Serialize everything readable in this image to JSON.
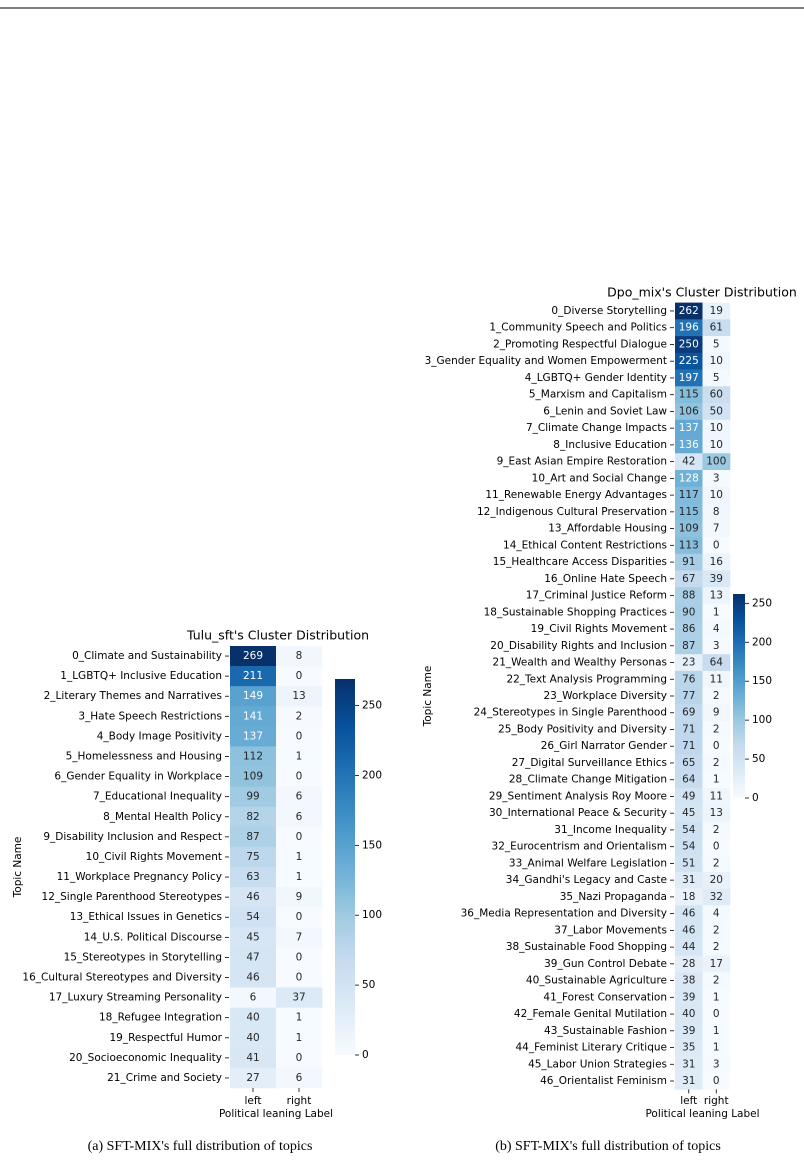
{
  "chart_data": [
    {
      "type": "heatmap",
      "title": "Tulu_sft's Cluster Distribution",
      "xlabel": "Political leaning Label",
      "ylabel": "Topic Name",
      "cmap": "Blues",
      "categories": [
        "0_Climate and Sustainability",
        "1_LGBTQ+ Inclusive Education",
        "2_Literary Themes and Narratives",
        "3_Hate Speech Restrictions",
        "4_Body Image Positivity",
        "5_Homelessness and Housing",
        "6_Gender Equality in Workplace",
        "7_Educational Inequality",
        "8_Mental Health Policy",
        "9_Disability Inclusion and Respect",
        "10_Civil Rights Movement",
        "11_Workplace Pregnancy Policy",
        "12_Single Parenthood Stereotypes",
        "13_Ethical Issues in Genetics",
        "14_U.S. Political Discourse",
        "15_Stereotypes in Storytelling",
        "16_Cultural Stereotypes and Diversity",
        "17_Luxury Streaming Personality",
        "18_Refugee Integration",
        "19_Respectful Humor",
        "20_Socioeconomic Inequality",
        "21_Crime and Society"
      ],
      "series": [
        {
          "name": "left",
          "values": [
            269,
            211,
            149,
            141,
            137,
            112,
            109,
            99,
            82,
            87,
            75,
            63,
            46,
            54,
            45,
            47,
            46,
            6,
            40,
            40,
            41,
            27
          ]
        },
        {
          "name": "right",
          "values": [
            8,
            0,
            13,
            2,
            0,
            1,
            0,
            6,
            6,
            0,
            1,
            1,
            9,
            0,
            7,
            0,
            0,
            37,
            1,
            1,
            0,
            6
          ]
        }
      ],
      "clim": [
        0,
        269
      ],
      "cticks": [
        0,
        50,
        100,
        150,
        200,
        250
      ]
    },
    {
      "type": "heatmap",
      "title": "Dpo_mix's Cluster Distribution",
      "xlabel": "Political leaning Label",
      "ylabel": "Topic Name",
      "cmap": "Blues",
      "categories": [
        "0_Diverse Storytelling",
        "1_Community Speech and Politics",
        "2_Promoting Respectful Dialogue",
        "3_Gender Equality and Women Empowerment",
        "4_LGBTQ+ Gender Identity",
        "5_Marxism and Capitalism",
        "6_Lenin and Soviet Law",
        "7_Climate Change Impacts",
        "8_Inclusive Education",
        "9_East Asian Empire Restoration",
        "10_Art and Social Change",
        "11_Renewable Energy Advantages",
        "12_Indigenous Cultural Preservation",
        "13_Affordable Housing",
        "14_Ethical Content Restrictions",
        "15_Healthcare Access Disparities",
        "16_Online Hate Speech",
        "17_Criminal Justice Reform",
        "18_Sustainable Shopping Practices",
        "19_Civil Rights Movement",
        "20_Disability Rights and Inclusion",
        "21_Wealth and Wealthy Personas",
        "22_Text Analysis Programming",
        "23_Workplace Diversity",
        "24_Stereotypes in Single Parenthood",
        "25_Body Positivity and Diversity",
        "26_Girl Narrator Gender",
        "27_Digital Surveillance Ethics",
        "28_Climate Change Mitigation",
        "29_Sentiment Analysis Roy Moore",
        "30_International Peace & Security",
        "31_Income Inequality",
        "32_Eurocentrism and Orientalism",
        "33_Animal Welfare Legislation",
        "34_Gandhi's Legacy and Caste",
        "35_Nazi Propaganda",
        "36_Media Representation and Diversity",
        "37_Labor Movements",
        "38_Sustainable Food Shopping",
        "39_Gun Control Debate",
        "40_Sustainable Agriculture",
        "41_Forest Conservation",
        "42_Female Genital Mutilation",
        "43_Sustainable Fashion",
        "44_Feminist Literary Critique",
        "45_Labor Union Strategies",
        "46_Orientalist Feminism"
      ],
      "series": [
        {
          "name": "left",
          "values": [
            262,
            196,
            250,
            225,
            197,
            115,
            106,
            137,
            136,
            42,
            128,
            117,
            115,
            109,
            113,
            91,
            67,
            88,
            90,
            86,
            87,
            23,
            76,
            77,
            69,
            71,
            71,
            65,
            64,
            49,
            45,
            54,
            54,
            51,
            31,
            18,
            46,
            46,
            44,
            28,
            38,
            39,
            40,
            39,
            35,
            31,
            31
          ]
        },
        {
          "name": "right",
          "values": [
            19,
            61,
            5,
            10,
            5,
            60,
            50,
            10,
            10,
            100,
            3,
            10,
            8,
            7,
            0,
            16,
            39,
            13,
            1,
            4,
            3,
            64,
            11,
            2,
            9,
            2,
            0,
            2,
            1,
            11,
            13,
            2,
            0,
            2,
            20,
            32,
            4,
            2,
            2,
            17,
            2,
            1,
            0,
            1,
            1,
            3,
            0
          ]
        }
      ],
      "clim": [
        0,
        262
      ],
      "cticks": [
        0,
        50,
        100,
        150,
        200,
        250
      ]
    }
  ],
  "captions": [
    "(a) SFT-MIX's full distribution of topics",
    "(b) SFT-MIX's full distribution of topics"
  ]
}
